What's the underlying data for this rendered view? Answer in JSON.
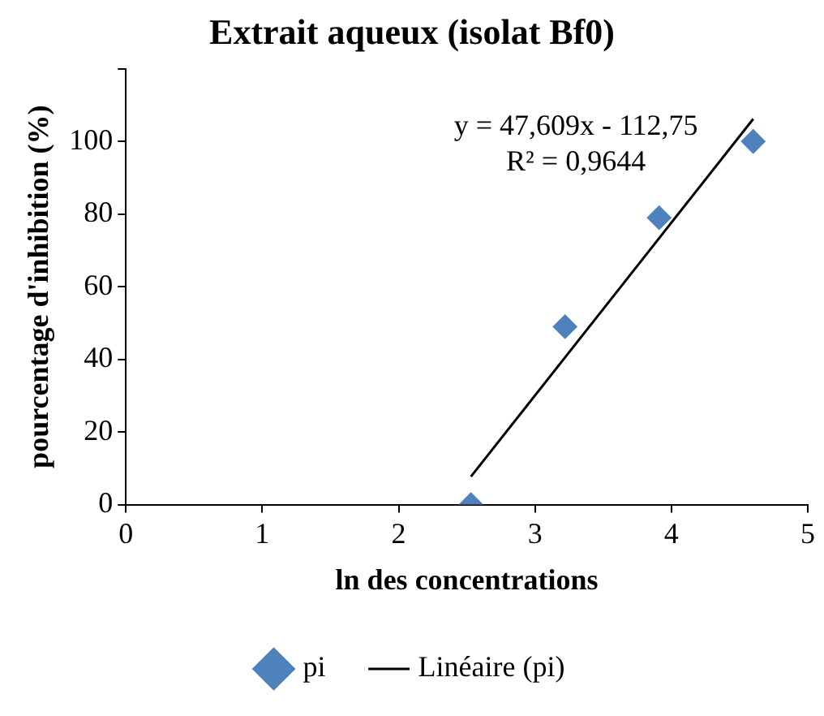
{
  "chart_data": {
    "type": "scatter",
    "title": "Extrait aqueux (isolat Bf0)",
    "xlabel": "ln des concentrations",
    "ylabel": "pourcentage d'inhibition (%)",
    "xlim": [
      0,
      5
    ],
    "xticks": [
      0,
      1,
      2,
      3,
      4,
      5
    ],
    "ylim": [
      0,
      120
    ],
    "yticks": [
      0,
      20,
      40,
      60,
      80,
      100,
      {
        "value": 120,
        "label": null
      }
    ],
    "grid": false,
    "legend": "bottom",
    "series": [
      {
        "name": "pi",
        "type": "scatter",
        "marker": "diamond",
        "color": "#4f81bd",
        "x": [
          2.53,
          3.22,
          3.91,
          4.6
        ],
        "values": [
          0,
          49,
          79,
          100
        ]
      },
      {
        "name": "Linéaire (pi)",
        "type": "line",
        "color": "#000000",
        "x": [
          2.53,
          4.6
        ],
        "values": [
          7.7,
          106.2
        ]
      }
    ],
    "annotations": [
      "y = 47,609x - 112,75",
      "R² = 0,9644"
    ]
  }
}
